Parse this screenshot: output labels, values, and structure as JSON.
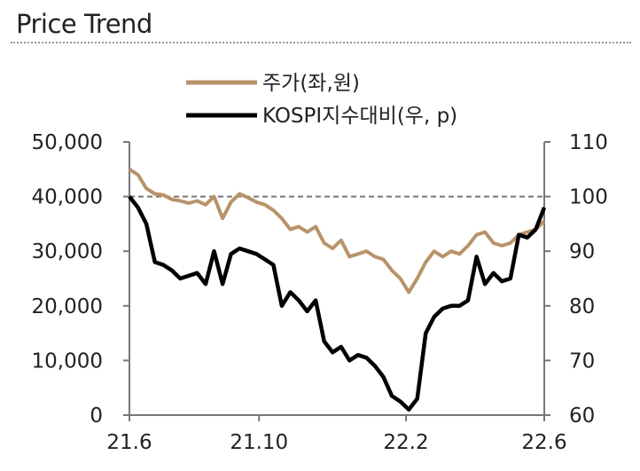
{
  "title": "Price Trend",
  "chart_data": {
    "type": "line",
    "title": "Price Trend",
    "x_ticks": [
      "21.6",
      "21.10",
      "22.2",
      "22.6"
    ],
    "y_left": {
      "ticks": [
        "0",
        "10,000",
        "20,000",
        "30,000",
        "40,000",
        "50,000"
      ],
      "range": [
        0,
        50000
      ]
    },
    "y_right": {
      "ticks": [
        "60",
        "70",
        "80",
        "90",
        "100",
        "110"
      ],
      "range": [
        60,
        110
      ]
    },
    "reference_line": {
      "axis": "right",
      "value": 100,
      "style": "dashed"
    },
    "series": [
      {
        "name": "주가(좌,원)",
        "axis": "left",
        "color": "#b8936a",
        "points": [
          [
            "21.6",
            45000
          ],
          [
            "21.6+",
            44000
          ],
          [
            "21.6++",
            41500
          ],
          [
            "21.7a",
            40500
          ],
          [
            "21.7b",
            40300
          ],
          [
            "21.7c",
            39500
          ],
          [
            "21.7d",
            39200
          ],
          [
            "21.7e",
            38800
          ],
          [
            "21.8a",
            39200
          ],
          [
            "21.8b",
            38500
          ],
          [
            "21.8c",
            40000
          ],
          [
            "21.8d",
            36000
          ],
          [
            "21.8e",
            39000
          ],
          [
            "21.9a",
            40500
          ],
          [
            "21.9b",
            39800
          ],
          [
            "21.9c",
            39000
          ],
          [
            "21.9d",
            38500
          ],
          [
            "21.10",
            37500
          ],
          [
            "21.10b",
            36000
          ],
          [
            "21.10c",
            34000
          ],
          [
            "21.10d",
            34500
          ],
          [
            "21.11a",
            33500
          ],
          [
            "21.11b",
            34500
          ],
          [
            "21.11c",
            31500
          ],
          [
            "21.11d",
            30500
          ],
          [
            "21.11e",
            32000
          ],
          [
            "21.12a",
            29000
          ],
          [
            "21.12b",
            29500
          ],
          [
            "21.12c",
            30000
          ],
          [
            "21.12d",
            29000
          ],
          [
            "22.1a",
            28500
          ],
          [
            "22.1b",
            26500
          ],
          [
            "22.1c",
            25000
          ],
          [
            "22.1d",
            22500
          ],
          [
            "22.1e",
            25000
          ],
          [
            "22.2",
            28000
          ],
          [
            "22.2b",
            30000
          ],
          [
            "22.2c",
            29000
          ],
          [
            "22.3a",
            30000
          ],
          [
            "22.3b",
            29500
          ],
          [
            "22.3c",
            31000
          ],
          [
            "22.4a",
            33000
          ],
          [
            "22.4b",
            33500
          ],
          [
            "22.4c",
            31500
          ],
          [
            "22.4d",
            31000
          ],
          [
            "22.5a",
            31500
          ],
          [
            "22.5b",
            33000
          ],
          [
            "22.5c",
            33500
          ],
          [
            "22.5d",
            34000
          ],
          [
            "22.6",
            35500
          ]
        ]
      },
      {
        "name": "KOSPI지수대비(우, p)",
        "axis": "right",
        "color": "#000000",
        "points": [
          [
            "21.6",
            100
          ],
          [
            "21.6+",
            98
          ],
          [
            "21.6++",
            95
          ],
          [
            "21.7a",
            88
          ],
          [
            "21.7b",
            87.5
          ],
          [
            "21.7c",
            86.5
          ],
          [
            "21.7d",
            85
          ],
          [
            "21.7e",
            85.5
          ],
          [
            "21.8a",
            86
          ],
          [
            "21.8b",
            84
          ],
          [
            "21.8c",
            90
          ],
          [
            "21.8d",
            84
          ],
          [
            "21.8e",
            89.5
          ],
          [
            "21.9a",
            90.5
          ],
          [
            "21.9b",
            90
          ],
          [
            "21.9c",
            89.5
          ],
          [
            "21.9d",
            88.5
          ],
          [
            "21.10",
            87.5
          ],
          [
            "21.10b",
            80
          ],
          [
            "21.10c",
            82.5
          ],
          [
            "21.10d",
            81
          ],
          [
            "21.11a",
            79
          ],
          [
            "21.11b",
            81
          ],
          [
            "21.11c",
            73.5
          ],
          [
            "21.11d",
            71.5
          ],
          [
            "21.11e",
            72.5
          ],
          [
            "21.12a",
            70
          ],
          [
            "21.12b",
            71
          ],
          [
            "21.12c",
            70.5
          ],
          [
            "21.12d",
            69
          ],
          [
            "22.1a",
            67
          ],
          [
            "22.1b",
            63.5
          ],
          [
            "22.1c",
            62.5
          ],
          [
            "22.1d",
            61
          ],
          [
            "22.1e",
            63
          ],
          [
            "22.2",
            75
          ],
          [
            "22.2b",
            78
          ],
          [
            "22.2c",
            79.5
          ],
          [
            "22.3a",
            80
          ],
          [
            "22.3b",
            80
          ],
          [
            "22.3c",
            81
          ],
          [
            "22.4a",
            89
          ],
          [
            "22.4b",
            84
          ],
          [
            "22.4c",
            86
          ],
          [
            "22.4d",
            84.5
          ],
          [
            "22.5a",
            85
          ],
          [
            "22.5b",
            93
          ],
          [
            "22.5c",
            92.5
          ],
          [
            "22.5d",
            94
          ],
          [
            "22.6",
            98
          ]
        ]
      }
    ],
    "legend_placement": "top-center"
  }
}
